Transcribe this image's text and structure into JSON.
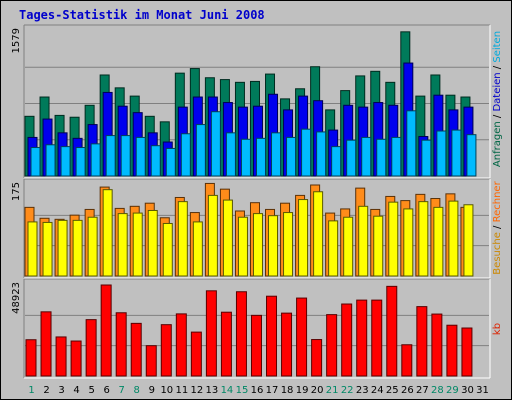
{
  "title": "Tages-Statistik im Monat Juni 2008",
  "chart_data": {
    "type": "bar",
    "categories": [
      "1",
      "2",
      "3",
      "4",
      "5",
      "6",
      "7",
      "8",
      "9",
      "10",
      "11",
      "12",
      "13",
      "14",
      "15",
      "16",
      "17",
      "18",
      "19",
      "20",
      "21",
      "22",
      "23",
      "24",
      "25",
      "26",
      "27",
      "28",
      "29",
      "30",
      "31"
    ],
    "weekend_days": [
      "1",
      "7",
      "8",
      "14",
      "15",
      "21",
      "22",
      "28",
      "29"
    ],
    "panels": [
      {
        "name": "access",
        "ymax_label": "1579",
        "ymax": 1579,
        "legend": [
          {
            "text": "Anfragen",
            "color": "#006644"
          },
          {
            "text": "Dateien",
            "color": "#0000cc"
          },
          {
            "text": "Seiten",
            "color": "#00aadd"
          }
        ],
        "series": [
          {
            "name": "Anfragen",
            "color": "#007a5a",
            "values": [
              650,
              860,
              660,
              640,
              770,
              1100,
              960,
              870,
              650,
              590,
              1120,
              1170,
              1070,
              1050,
              1020,
              1030,
              1110,
              840,
              950,
              1190,
              720,
              930,
              1090,
              1140,
              1020,
              1570,
              870,
              1100,
              880,
              860,
              0
            ]
          },
          {
            "name": "Dateien",
            "color": "#0000ee",
            "values": [
              420,
              620,
              470,
              410,
              560,
              910,
              760,
              690,
              470,
              370,
              750,
              860,
              860,
              800,
              750,
              760,
              890,
              720,
              870,
              820,
              500,
              770,
              750,
              800,
              770,
              1230,
              430,
              880,
              720,
              750,
              0
            ]
          },
          {
            "name": "Seiten",
            "color": "#00bbff",
            "values": [
              310,
              340,
              320,
              310,
              350,
              440,
              440,
              420,
              330,
              300,
              460,
              560,
              700,
              470,
              400,
              410,
              470,
              420,
              510,
              480,
              320,
              390,
              420,
              400,
              420,
              710,
              390,
              490,
              500,
              450,
              0
            ]
          }
        ]
      },
      {
        "name": "visits",
        "ymax_label": "175",
        "ymax": 175,
        "legend": [
          {
            "text": "Besuche",
            "color": "#cc8800"
          },
          {
            "text": "Rechner",
            "color": "#ff6600"
          }
        ],
        "series": [
          {
            "name": "Besuche",
            "color": "#ff8c1a",
            "values": [
              132,
              111,
              109,
              117,
              128,
              171,
              130,
              134,
              140,
              112,
              151,
              122,
              178,
              167,
              125,
              141,
              128,
              140,
              155,
              175,
              121,
              129,
              169,
              128,
              153,
              145,
              157,
              149,
              158,
              132,
              0
            ]
          },
          {
            "name": "Rechner",
            "color": "#ffff00",
            "values": [
              104,
              103,
              107,
              107,
              113,
              166,
              120,
              121,
              126,
              101,
              143,
              104,
              155,
              146,
              113,
              120,
              116,
              122,
              147,
              162,
              106,
              113,
              134,
              115,
              142,
              129,
              143,
              132,
              144,
              137,
              0
            ]
          }
        ]
      },
      {
        "name": "kb",
        "ymax_label": "48923",
        "ymax": 48923,
        "legend": [
          {
            "text": "kb",
            "color": "#dd2200"
          }
        ],
        "series": [
          {
            "name": "kb",
            "color": "#ff0000",
            "values": [
              19500,
              34500,
              21000,
              18800,
              30300,
              48923,
              34000,
              28300,
              16300,
              27600,
              33400,
              23600,
              45800,
              34300,
              45300,
              32600,
              42900,
              33800,
              41900,
              19600,
              33000,
              38700,
              40800,
              40800,
              48200,
              16800,
              37300,
              33300,
              27300,
              25800,
              0
            ]
          }
        ]
      }
    ]
  }
}
